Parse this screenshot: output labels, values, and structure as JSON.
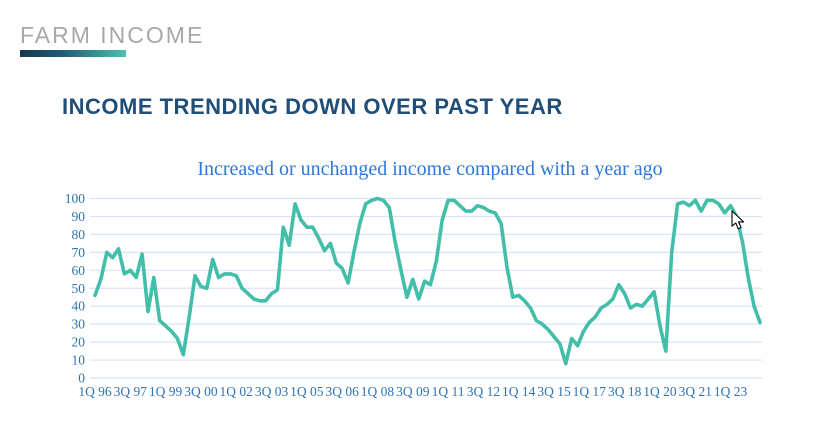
{
  "page": {
    "eyebrow": "FARM INCOME",
    "headline": "INCOME TRENDING DOWN OVER PAST YEAR"
  },
  "chart_data": {
    "type": "line",
    "title": "Increased or unchanged income compared with a year ago",
    "xlabel": "",
    "ylabel": "",
    "x_unit": "quarter",
    "x_start_label": "1Q 96",
    "x_end_label": "2Q 24",
    "x_tick_interval_quarters": 6,
    "x_tick_labels": [
      "1Q 96",
      "3Q 97",
      "1Q 99",
      "3Q 00",
      "1Q 02",
      "3Q 03",
      "1Q 05",
      "3Q 06",
      "1Q 08",
      "3Q 09",
      "1Q 11",
      "3Q 12",
      "1Q 14",
      "3Q 15",
      "1Q 17",
      "3Q 18",
      "1Q 20",
      "3Q 21",
      "1Q 23"
    ],
    "ylim": [
      0,
      100
    ],
    "y_ticks": [
      0,
      10,
      20,
      30,
      40,
      50,
      60,
      70,
      80,
      90,
      100
    ],
    "grid": true,
    "legend_position": "none",
    "line_color": "#43bea9",
    "grid_color": "#d9e4f2",
    "axis_label_color": "#2e75b6",
    "title_color": "#2b79dc",
    "values": [
      46,
      55,
      70,
      67,
      72,
      58,
      60,
      56,
      69,
      37,
      56,
      32,
      29,
      26,
      22,
      13,
      34,
      57,
      51,
      50,
      66,
      56,
      58,
      58,
      57,
      50,
      47,
      44,
      43,
      43,
      47,
      49,
      84,
      74,
      97,
      88,
      84,
      84,
      78,
      71,
      75,
      64,
      61,
      53,
      70,
      86,
      97,
      99,
      100,
      99,
      95,
      76,
      60,
      45,
      55,
      44,
      54,
      52,
      65,
      88,
      99,
      99,
      96,
      93,
      93,
      96,
      95,
      93,
      92,
      86,
      62,
      45,
      46,
      43,
      39,
      32,
      30,
      27,
      23,
      19,
      8,
      22,
      18,
      26,
      31,
      34,
      39,
      41,
      44,
      52,
      47,
      39,
      41,
      40,
      44,
      48,
      29,
      15,
      70,
      97,
      98,
      96,
      99,
      93,
      99,
      99,
      97,
      92,
      96,
      90,
      76,
      56,
      40,
      31
    ]
  }
}
